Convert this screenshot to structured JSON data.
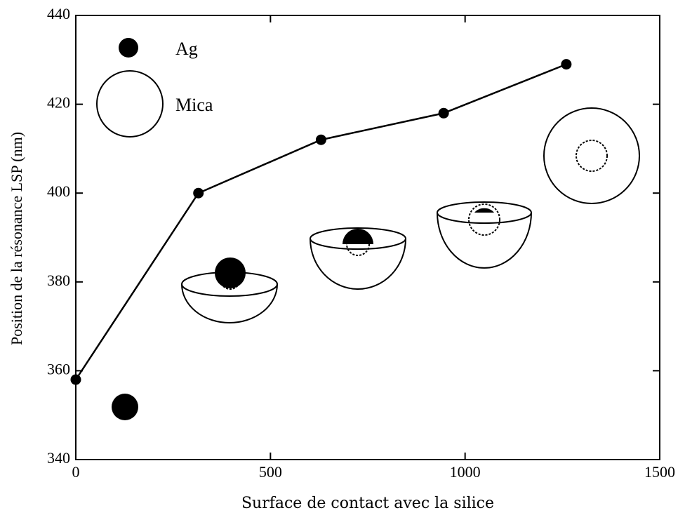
{
  "chart_data": {
    "type": "line",
    "x_label": "Surface de contact avec la silice",
    "y_label": "Position de la résonance LSP (nm)",
    "x": [
      0,
      315,
      630,
      945,
      1260
    ],
    "series": [
      {
        "name": null,
        "color": "#000000",
        "values": [
          358,
          400,
          412,
          418,
          429
        ]
      }
    ],
    "legend_labels": [
      "Ag",
      "Mica"
    ],
    "xlim": [
      0,
      1500
    ],
    "xticks": [
      0,
      500,
      1000,
      1500
    ],
    "ylim": [
      340,
      440
    ],
    "yticks": [
      340,
      360,
      380,
      400,
      420,
      440
    ],
    "grid": false
  }
}
